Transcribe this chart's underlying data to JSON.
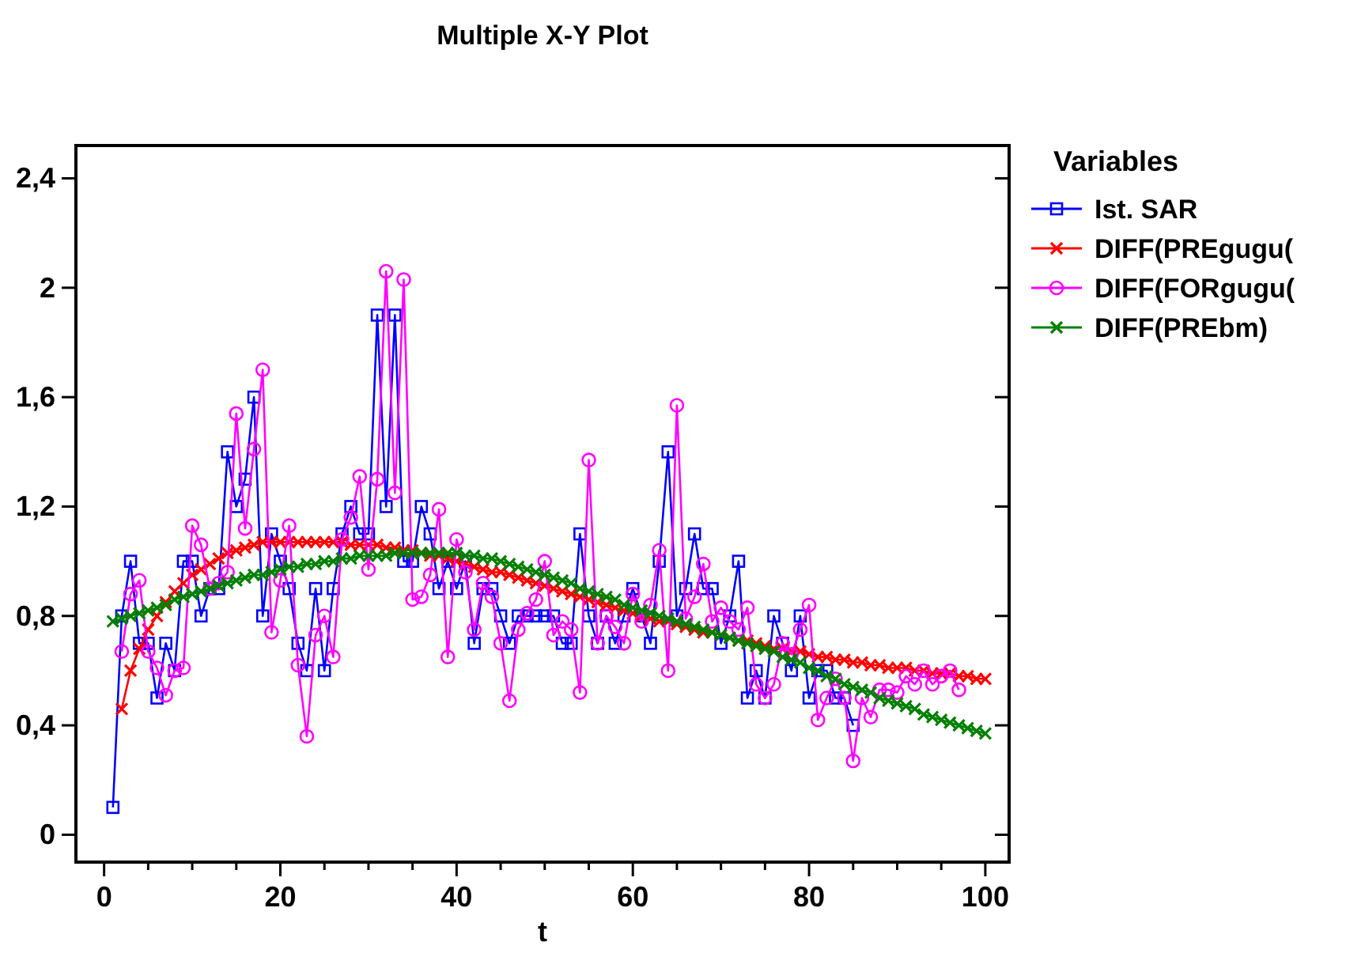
{
  "chart_data": {
    "type": "line",
    "title": "Multiple X-Y Plot",
    "xlabel": "t",
    "legend_title": "Variables",
    "legend": "right",
    "grid": false,
    "xlim": [
      -3.2,
      102.7
    ],
    "ylim": [
      -0.1,
      2.52
    ],
    "xticks": [
      0,
      {
        "value": 5,
        "label": null
      },
      {
        "value": 10,
        "label": null
      },
      {
        "value": 15,
        "label": null
      },
      20,
      {
        "value": 25,
        "label": null
      },
      {
        "value": 30,
        "label": null
      },
      {
        "value": 35,
        "label": null
      },
      40,
      {
        "value": 45,
        "label": null
      },
      {
        "value": 50,
        "label": null
      },
      {
        "value": 55,
        "label": null
      },
      60,
      {
        "value": 65,
        "label": null
      },
      {
        "value": 70,
        "label": null
      },
      {
        "value": 75,
        "label": null
      },
      80,
      {
        "value": 85,
        "label": null
      },
      {
        "value": 90,
        "label": null
      },
      {
        "value": 95,
        "label": null
      },
      100
    ],
    "yticks": [
      0,
      {
        "value": 0.4,
        "label": "0,4"
      },
      {
        "value": 0.8,
        "label": "0,8"
      },
      {
        "value": 1.2,
        "label": "1,2"
      },
      {
        "value": 1.6,
        "label": "1,6"
      },
      2,
      {
        "value": 2.4,
        "label": "2,4"
      }
    ],
    "series": [
      {
        "name": "Ist. SAR",
        "color": "#0000ff",
        "marker": "square",
        "x": [
          1,
          2,
          3,
          4,
          5,
          6,
          7,
          8,
          9,
          10,
          11,
          12,
          13,
          14,
          15,
          16,
          17,
          18,
          19,
          20,
          21,
          22,
          23,
          24,
          25,
          26,
          27,
          28,
          29,
          30,
          31,
          32,
          33,
          34,
          35,
          36,
          37,
          38,
          39,
          40,
          41,
          42,
          43,
          44,
          45,
          46,
          47,
          48,
          49,
          50,
          51,
          52,
          53,
          54,
          55,
          56,
          57,
          58,
          59,
          60,
          61,
          62,
          63,
          64,
          65,
          66,
          67,
          68,
          69,
          70,
          71,
          72,
          73,
          74,
          75,
          76,
          77,
          78,
          79,
          80,
          81,
          82,
          83,
          84,
          85
        ],
        "values": [
          0.1,
          0.8,
          1.0,
          0.7,
          0.7,
          0.5,
          0.7,
          0.6,
          1.0,
          1.0,
          0.8,
          0.9,
          0.9,
          1.4,
          1.2,
          1.3,
          1.6,
          0.8,
          1.1,
          1.0,
          0.9,
          0.7,
          0.6,
          0.9,
          0.6,
          0.9,
          1.1,
          1.2,
          1.1,
          1.1,
          1.9,
          1.2,
          1.9,
          1.0,
          1.0,
          1.2,
          1.1,
          0.9,
          1.0,
          0.9,
          1.0,
          0.7,
          0.9,
          0.9,
          0.8,
          0.7,
          0.8,
          0.8,
          0.8,
          0.8,
          0.8,
          0.7,
          0.7,
          1.1,
          0.8,
          0.7,
          0.8,
          0.7,
          0.8,
          0.9,
          0.8,
          0.7,
          1.0,
          1.4,
          0.8,
          0.9,
          1.1,
          0.9,
          0.9,
          0.7,
          0.8,
          1.0,
          0.5,
          0.6,
          0.5,
          0.8,
          0.7,
          0.6,
          0.8,
          0.5,
          0.6,
          0.6,
          0.5,
          0.5,
          0.4
        ]
      },
      {
        "name": "DIFF(PREgugu(",
        "color": "#ff0000",
        "marker": "cross",
        "x": [
          2,
          3,
          4,
          5,
          6,
          7,
          8,
          9,
          10,
          11,
          12,
          13,
          14,
          15,
          16,
          17,
          18,
          19,
          20,
          21,
          22,
          23,
          24,
          25,
          26,
          27,
          28,
          29,
          30,
          31,
          32,
          33,
          34,
          35,
          36,
          37,
          38,
          39,
          40,
          41,
          42,
          43,
          44,
          45,
          46,
          47,
          48,
          49,
          50,
          51,
          52,
          53,
          54,
          55,
          56,
          57,
          58,
          59,
          60,
          61,
          62,
          63,
          64,
          65,
          66,
          67,
          68,
          69,
          70,
          71,
          72,
          73,
          74,
          75,
          76,
          77,
          78,
          79,
          80,
          81,
          82,
          83,
          84,
          85,
          86,
          87,
          88,
          89,
          90,
          91,
          92,
          93,
          94,
          95,
          96,
          97,
          98,
          99,
          100
        ],
        "values": [
          0.46,
          0.6,
          0.68,
          0.75,
          0.8,
          0.85,
          0.89,
          0.92,
          0.95,
          0.97,
          0.99,
          1.01,
          1.03,
          1.04,
          1.05,
          1.06,
          1.07,
          1.07,
          1.07,
          1.07,
          1.07,
          1.07,
          1.07,
          1.07,
          1.07,
          1.07,
          1.06,
          1.06,
          1.06,
          1.06,
          1.05,
          1.05,
          1.04,
          1.04,
          1.03,
          1.02,
          1.02,
          1.01,
          1.0,
          0.99,
          0.98,
          0.97,
          0.96,
          0.96,
          0.95,
          0.94,
          0.93,
          0.92,
          0.91,
          0.9,
          0.89,
          0.88,
          0.87,
          0.86,
          0.85,
          0.84,
          0.83,
          0.82,
          0.81,
          0.8,
          0.79,
          0.78,
          0.78,
          0.77,
          0.76,
          0.75,
          0.74,
          0.74,
          0.73,
          0.72,
          0.71,
          0.71,
          0.7,
          0.69,
          0.68,
          0.68,
          0.67,
          0.67,
          0.66,
          0.65,
          0.65,
          0.64,
          0.64,
          0.63,
          0.63,
          0.62,
          0.62,
          0.61,
          0.61,
          0.61,
          0.6,
          0.6,
          0.59,
          0.59,
          0.59,
          0.58,
          0.58,
          0.57,
          0.57
        ]
      },
      {
        "name": "DIFF(FORgugu(",
        "color": "#ff00ff",
        "marker": "circle",
        "x": [
          2,
          3,
          4,
          5,
          6,
          7,
          8,
          9,
          10,
          11,
          12,
          13,
          14,
          15,
          16,
          17,
          18,
          19,
          20,
          21,
          22,
          23,
          24,
          25,
          26,
          27,
          28,
          29,
          30,
          31,
          32,
          33,
          34,
          35,
          36,
          37,
          38,
          39,
          40,
          41,
          42,
          43,
          44,
          45,
          46,
          47,
          48,
          49,
          50,
          51,
          52,
          53,
          54,
          55,
          56,
          57,
          58,
          59,
          60,
          61,
          62,
          63,
          64,
          65,
          66,
          67,
          68,
          69,
          70,
          71,
          72,
          73,
          74,
          75,
          76,
          77,
          78,
          79,
          80,
          81,
          82,
          83,
          84,
          85,
          86,
          87,
          88,
          89,
          90,
          91,
          92,
          93,
          94,
          95,
          96,
          97
        ],
        "values": [
          0.67,
          0.88,
          0.93,
          0.67,
          0.61,
          0.51,
          0.6,
          0.61,
          1.13,
          1.06,
          0.9,
          0.92,
          0.96,
          1.54,
          1.12,
          1.41,
          1.7,
          0.74,
          0.93,
          1.13,
          0.62,
          0.36,
          0.73,
          0.8,
          0.65,
          1.08,
          1.16,
          1.31,
          0.97,
          1.3,
          2.06,
          1.25,
          2.03,
          0.86,
          0.87,
          0.95,
          1.19,
          0.65,
          1.08,
          0.96,
          0.75,
          0.92,
          0.87,
          0.7,
          0.49,
          0.75,
          0.81,
          0.86,
          1.0,
          0.73,
          0.78,
          0.75,
          0.52,
          1.37,
          0.7,
          0.8,
          0.76,
          0.7,
          0.88,
          0.78,
          0.84,
          1.04,
          0.6,
          1.57,
          0.79,
          0.87,
          0.99,
          0.78,
          0.83,
          0.78,
          0.75,
          0.83,
          0.55,
          0.5,
          0.55,
          0.7,
          0.66,
          0.75,
          0.84,
          0.42,
          0.5,
          0.57,
          0.5,
          0.27,
          0.5,
          0.43,
          0.53,
          0.53,
          0.52,
          0.58,
          0.55,
          0.6,
          0.55,
          0.58,
          0.6,
          0.53
        ]
      },
      {
        "name": "DIFF(PREbm)",
        "color": "#008000",
        "marker": "cross",
        "x": [
          1,
          2,
          3,
          4,
          5,
          6,
          7,
          8,
          9,
          10,
          11,
          12,
          13,
          14,
          15,
          16,
          17,
          18,
          19,
          20,
          21,
          22,
          23,
          24,
          25,
          26,
          27,
          28,
          29,
          30,
          31,
          32,
          33,
          34,
          35,
          36,
          37,
          38,
          39,
          40,
          41,
          42,
          43,
          44,
          45,
          46,
          47,
          48,
          49,
          50,
          51,
          52,
          53,
          54,
          55,
          56,
          57,
          58,
          59,
          60,
          61,
          62,
          63,
          64,
          65,
          66,
          67,
          68,
          69,
          70,
          71,
          72,
          73,
          74,
          75,
          76,
          77,
          78,
          79,
          80,
          81,
          82,
          83,
          84,
          85,
          86,
          87,
          88,
          89,
          90,
          91,
          92,
          93,
          94,
          95,
          96,
          97,
          98,
          99,
          100
        ],
        "values": [
          0.78,
          0.79,
          0.8,
          0.81,
          0.82,
          0.83,
          0.84,
          0.86,
          0.87,
          0.88,
          0.89,
          0.9,
          0.91,
          0.92,
          0.93,
          0.94,
          0.95,
          0.95,
          0.96,
          0.97,
          0.98,
          0.98,
          0.99,
          0.99,
          1.0,
          1.0,
          1.01,
          1.01,
          1.02,
          1.02,
          1.02,
          1.02,
          1.03,
          1.03,
          1.03,
          1.03,
          1.03,
          1.03,
          1.03,
          1.03,
          1.02,
          1.02,
          1.01,
          1.01,
          1.0,
          0.99,
          0.98,
          0.97,
          0.96,
          0.95,
          0.94,
          0.93,
          0.92,
          0.9,
          0.89,
          0.88,
          0.87,
          0.86,
          0.84,
          0.83,
          0.82,
          0.81,
          0.8,
          0.79,
          0.78,
          0.77,
          0.76,
          0.75,
          0.74,
          0.73,
          0.72,
          0.71,
          0.7,
          0.69,
          0.68,
          0.67,
          0.65,
          0.64,
          0.63,
          0.61,
          0.6,
          0.58,
          0.57,
          0.55,
          0.54,
          0.53,
          0.52,
          0.5,
          0.49,
          0.48,
          0.47,
          0.46,
          0.44,
          0.43,
          0.42,
          0.41,
          0.4,
          0.39,
          0.38,
          0.37
        ]
      }
    ]
  }
}
